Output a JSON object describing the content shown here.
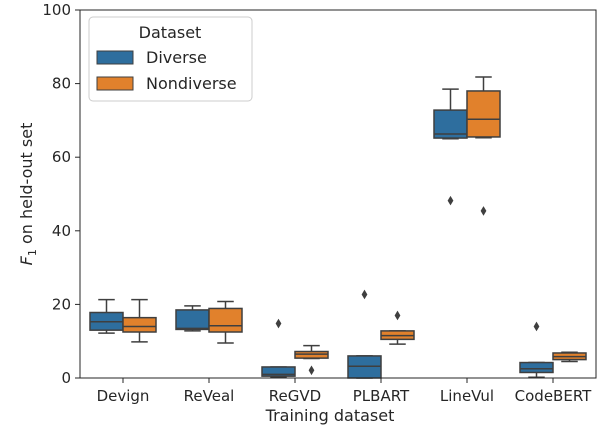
{
  "chart_data": {
    "type": "box",
    "xlabel": "Training dataset",
    "ylabel": "F",
    "ylabel_subscript": "1",
    "ylabel_suffix": " on held-out set",
    "ylim": [
      0,
      100
    ],
    "yticks": [
      "0",
      "20",
      "40",
      "60",
      "80",
      "100"
    ],
    "categories": [
      "Devign",
      "ReVeal",
      "ReGVD",
      "PLBART",
      "LineVul",
      "CodeBERT"
    ],
    "legend": {
      "title": "Dataset",
      "placement": "top-left"
    },
    "series": [
      {
        "name": "Diverse",
        "color": "#2e6e9e",
        "boxes": [
          {
            "whislo": 12.2,
            "q1": 13.0,
            "med": 15.3,
            "q3": 17.8,
            "whishi": 21.3,
            "fliers": []
          },
          {
            "whislo": 12.8,
            "q1": 13.2,
            "med": 13.5,
            "q3": 18.5,
            "whishi": 19.6,
            "fliers": []
          },
          {
            "whislo": 0.3,
            "q1": 0.5,
            "med": 1.0,
            "q3": 3.0,
            "whishi": 3.0,
            "fliers": [
              14.8
            ]
          },
          {
            "whislo": 0.0,
            "q1": 0.0,
            "med": 3.2,
            "q3": 6.0,
            "whishi": 6.0,
            "fliers": [
              22.7
            ]
          },
          {
            "whislo": 65.0,
            "q1": 65.2,
            "med": 66.3,
            "q3": 72.8,
            "whishi": 78.5,
            "fliers": [
              48.2
            ]
          },
          {
            "whislo": 0.2,
            "q1": 1.5,
            "med": 2.5,
            "q3": 4.2,
            "whishi": 4.2,
            "fliers": [
              14.0
            ]
          }
        ]
      },
      {
        "name": "Nondiverse",
        "color": "#e1812c",
        "boxes": [
          {
            "whislo": 9.8,
            "q1": 12.5,
            "med": 14.0,
            "q3": 16.4,
            "whishi": 21.3,
            "fliers": []
          },
          {
            "whislo": 9.5,
            "q1": 12.5,
            "med": 14.2,
            "q3": 18.9,
            "whishi": 20.8,
            "fliers": []
          },
          {
            "whislo": 5.3,
            "q1": 5.4,
            "med": 6.5,
            "q3": 7.2,
            "whishi": 8.8,
            "fliers": [
              2.1
            ]
          },
          {
            "whislo": 9.2,
            "q1": 10.5,
            "med": 11.5,
            "q3": 12.8,
            "whishi": 12.8,
            "fliers": [
              17.0
            ]
          },
          {
            "whislo": 65.3,
            "q1": 65.5,
            "med": 70.3,
            "q3": 78.0,
            "whishi": 81.8,
            "fliers": [
              45.4
            ]
          },
          {
            "whislo": 4.5,
            "q1": 5.0,
            "med": 5.8,
            "q3": 6.8,
            "whishi": 7.0,
            "fliers": []
          }
        ]
      }
    ]
  }
}
